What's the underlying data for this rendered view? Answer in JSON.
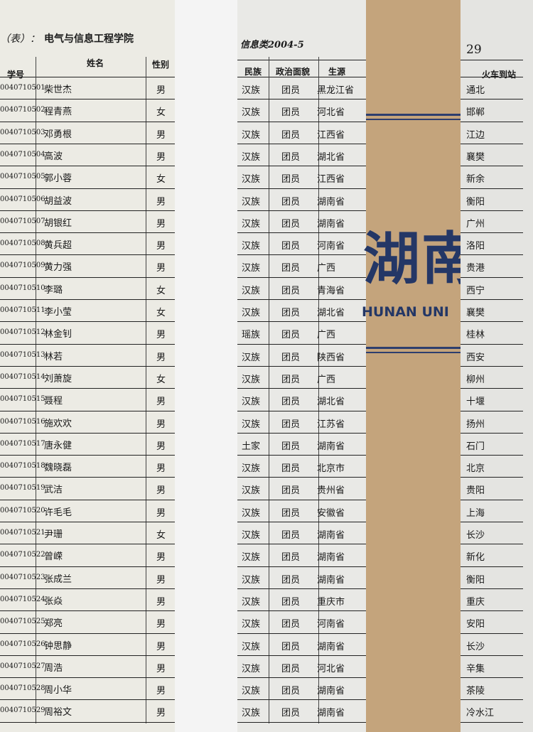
{
  "header": {
    "left_prefix": "（表）：",
    "school": "电气与信息工程学院",
    "class": "信息类2004-5",
    "page": "29"
  },
  "columns": {
    "id": "学号",
    "name": "姓名",
    "gender": "性别",
    "ethnicity": "民族",
    "political": "政治面貌",
    "origin": "生源",
    "station": "火车到站"
  },
  "bookmark": {
    "chinese": "湖南",
    "english": "HUNAN UNI"
  },
  "rows": [
    {
      "id": "0040710501",
      "name": "柴世杰",
      "gender": "男",
      "ethnicity": "汉族",
      "political": "团员",
      "origin": "黑龙江省",
      "station": "通北"
    },
    {
      "id": "0040710502",
      "name": "程青燕",
      "gender": "女",
      "ethnicity": "汉族",
      "political": "团员",
      "origin": "河北省",
      "station": "邯郸"
    },
    {
      "id": "0040710503",
      "name": "邓勇根",
      "gender": "男",
      "ethnicity": "汉族",
      "political": "团员",
      "origin": "江西省",
      "station": "江边"
    },
    {
      "id": "0040710504",
      "name": "高波",
      "gender": "男",
      "ethnicity": "汉族",
      "political": "团员",
      "origin": "湖北省",
      "station": "襄樊"
    },
    {
      "id": "0040710505",
      "name": "郭小蓉",
      "gender": "女",
      "ethnicity": "汉族",
      "political": "团员",
      "origin": "江西省",
      "station": "新余"
    },
    {
      "id": "0040710506",
      "name": "胡益波",
      "gender": "男",
      "ethnicity": "汉族",
      "political": "团员",
      "origin": "湖南省",
      "station": "衡阳"
    },
    {
      "id": "0040710507",
      "name": "胡银红",
      "gender": "男",
      "ethnicity": "汉族",
      "political": "团员",
      "origin": "湖南省",
      "station": "广州"
    },
    {
      "id": "0040710508",
      "name": "黄兵超",
      "gender": "男",
      "ethnicity": "汉族",
      "political": "团员",
      "origin": "河南省",
      "station": "洛阳"
    },
    {
      "id": "0040710509",
      "name": "黄力强",
      "gender": "男",
      "ethnicity": "汉族",
      "political": "团员",
      "origin": "广西",
      "station": "贵港"
    },
    {
      "id": "0040710510",
      "name": "李璐",
      "gender": "女",
      "ethnicity": "汉族",
      "political": "团员",
      "origin": "青海省",
      "station": "西宁"
    },
    {
      "id": "0040710511",
      "name": "李小莹",
      "gender": "女",
      "ethnicity": "汉族",
      "political": "团员",
      "origin": "湖北省",
      "station": "襄樊"
    },
    {
      "id": "0040710512",
      "name": "林金钊",
      "gender": "男",
      "ethnicity": "瑶族",
      "political": "团员",
      "origin": "广西",
      "station": "桂林"
    },
    {
      "id": "0040710513",
      "name": "林若",
      "gender": "男",
      "ethnicity": "汉族",
      "political": "团员",
      "origin": "陕西省",
      "station": "西安"
    },
    {
      "id": "0040710514",
      "name": "刘萧旋",
      "gender": "女",
      "ethnicity": "汉族",
      "political": "团员",
      "origin": "广西",
      "station": "柳州"
    },
    {
      "id": "0040710515",
      "name": "聂程",
      "gender": "男",
      "ethnicity": "汉族",
      "political": "团员",
      "origin": "湖北省",
      "station": "十堰"
    },
    {
      "id": "0040710516",
      "name": "施欢欢",
      "gender": "男",
      "ethnicity": "汉族",
      "political": "团员",
      "origin": "江苏省",
      "station": "扬州"
    },
    {
      "id": "0040710517",
      "name": "唐永健",
      "gender": "男",
      "ethnicity": "土家",
      "political": "团员",
      "origin": "湖南省",
      "station": "石门"
    },
    {
      "id": "0040710518",
      "name": "魏晓磊",
      "gender": "男",
      "ethnicity": "汉族",
      "political": "团员",
      "origin": "北京市",
      "station": "北京"
    },
    {
      "id": "0040710519",
      "name": "武洁",
      "gender": "男",
      "ethnicity": "汉族",
      "political": "团员",
      "origin": "贵州省",
      "station": "贵阳"
    },
    {
      "id": "0040710520",
      "name": "许毛毛",
      "gender": "男",
      "ethnicity": "汉族",
      "political": "团员",
      "origin": "安徽省",
      "station": "上海"
    },
    {
      "id": "0040710521",
      "name": "尹珊",
      "gender": "女",
      "ethnicity": "汉族",
      "political": "团员",
      "origin": "湖南省",
      "station": "长沙"
    },
    {
      "id": "0040710522",
      "name": "曾嵘",
      "gender": "男",
      "ethnicity": "汉族",
      "political": "团员",
      "origin": "湖南省",
      "station": "新化"
    },
    {
      "id": "0040710523",
      "name": "张成兰",
      "gender": "男",
      "ethnicity": "汉族",
      "political": "团员",
      "origin": "湖南省",
      "station": "衡阳"
    },
    {
      "id": "0040710524",
      "name": "张焱",
      "gender": "男",
      "ethnicity": "汉族",
      "political": "团员",
      "origin": "重庆市",
      "station": "重庆"
    },
    {
      "id": "0040710525",
      "name": "郑亮",
      "gender": "男",
      "ethnicity": "汉族",
      "political": "团员",
      "origin": "河南省",
      "station": "安阳"
    },
    {
      "id": "0040710526",
      "name": "钟思静",
      "gender": "男",
      "ethnicity": "汉族",
      "political": "团员",
      "origin": "湖南省",
      "station": "长沙"
    },
    {
      "id": "0040710527",
      "name": "周浩",
      "gender": "男",
      "ethnicity": "汉族",
      "political": "团员",
      "origin": "河北省",
      "station": "辛集"
    },
    {
      "id": "0040710528",
      "name": "周小华",
      "gender": "男",
      "ethnicity": "汉族",
      "political": "团员",
      "origin": "湖南省",
      "station": "茶陵"
    },
    {
      "id": "0040710529",
      "name": "周裕文",
      "gender": "男",
      "ethnicity": "汉族",
      "political": "团员",
      "origin": "湖南省",
      "station": "冷水江"
    }
  ]
}
